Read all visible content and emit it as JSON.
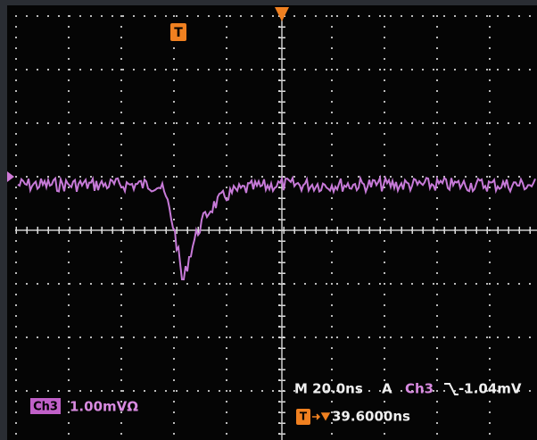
{
  "screen": {
    "trigger_marker": "T",
    "channel": {
      "name": "Ch3",
      "scale": "1.00mVΩ"
    },
    "timebase": "M 20.0ns",
    "trigger_mode": "A",
    "trigger_channel": "Ch3",
    "trigger_level": "-1.04mV",
    "trigger_position": "39.6000ns"
  }
}
